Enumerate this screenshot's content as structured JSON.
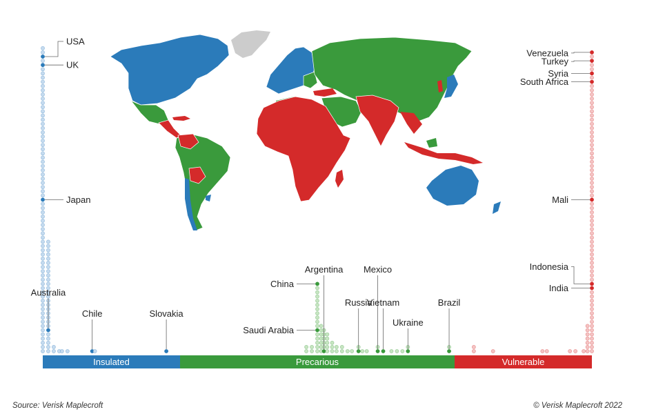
{
  "chart_data": {
    "type": "scatter",
    "title": "",
    "categories": [
      "Insulated",
      "Precarious",
      "Vulnerable"
    ],
    "colors": {
      "Insulated": "#2b7bba",
      "Precarious": "#3a9a3c",
      "Vulnerable": "#d42a2a",
      "insulated_dot": "#c6dbef",
      "precarious_dot": "#c7e5c2",
      "vulnerable_dot": "#f4c4c4",
      "unrated": "#cccccc"
    },
    "score_range": [
      0,
      10
    ],
    "category_thresholds": [
      2.5,
      7.5
    ],
    "columns": [
      {
        "score": 0.0,
        "count": 73
      },
      {
        "score": 0.1,
        "count": 27
      },
      {
        "score": 0.2,
        "count": 2
      },
      {
        "score": 0.3,
        "count": 1
      },
      {
        "score": 0.35,
        "count": 1
      },
      {
        "score": 0.45,
        "count": 1
      },
      {
        "score": 0.9,
        "count": 1
      },
      {
        "score": 0.95,
        "count": 1
      },
      {
        "score": 2.25,
        "count": 1
      },
      {
        "score": 4.8,
        "count": 2
      },
      {
        "score": 4.9,
        "count": 2
      },
      {
        "score": 5.0,
        "count": 17
      },
      {
        "score": 5.07,
        "count": 7
      },
      {
        "score": 5.12,
        "count": 6
      },
      {
        "score": 5.18,
        "count": 5
      },
      {
        "score": 5.27,
        "count": 3
      },
      {
        "score": 5.35,
        "count": 2
      },
      {
        "score": 5.45,
        "count": 2
      },
      {
        "score": 5.55,
        "count": 1
      },
      {
        "score": 5.63,
        "count": 1
      },
      {
        "score": 5.75,
        "count": 2
      },
      {
        "score": 5.82,
        "count": 1
      },
      {
        "score": 5.9,
        "count": 1
      },
      {
        "score": 6.1,
        "count": 2
      },
      {
        "score": 6.2,
        "count": 1
      },
      {
        "score": 6.35,
        "count": 1
      },
      {
        "score": 6.45,
        "count": 1
      },
      {
        "score": 6.55,
        "count": 1
      },
      {
        "score": 6.65,
        "count": 2
      },
      {
        "score": 7.4,
        "count": 2
      },
      {
        "score": 7.85,
        "count": 2
      },
      {
        "score": 8.2,
        "count": 1
      },
      {
        "score": 9.1,
        "count": 1
      },
      {
        "score": 9.18,
        "count": 1
      },
      {
        "score": 9.6,
        "count": 1
      },
      {
        "score": 9.7,
        "count": 1
      },
      {
        "score": 9.85,
        "count": 1
      },
      {
        "score": 9.92,
        "count": 7
      },
      {
        "score": 10.0,
        "count": 72
      }
    ],
    "labels": [
      {
        "name": "USA",
        "score": 0.0,
        "rank": 71,
        "side": "right"
      },
      {
        "name": "UK",
        "score": 0.0,
        "rank": 69,
        "side": "right"
      },
      {
        "name": "Japan",
        "score": 0.0,
        "rank": 37,
        "side": "right"
      },
      {
        "name": "Australia",
        "score": 0.1,
        "rank": 6,
        "side": "up"
      },
      {
        "name": "Chile",
        "score": 0.9,
        "rank": 1,
        "side": "up"
      },
      {
        "name": "Slovakia",
        "score": 2.25,
        "rank": 1,
        "side": "up"
      },
      {
        "name": "China",
        "score": 5.0,
        "rank": 17,
        "side": "left"
      },
      {
        "name": "Saudi Arabia",
        "score": 5.0,
        "rank": 6,
        "side": "left"
      },
      {
        "name": "Argentina",
        "score": 5.12,
        "rank": 1,
        "side": "up"
      },
      {
        "name": "Russia",
        "score": 5.75,
        "rank": 1,
        "side": "up"
      },
      {
        "name": "Mexico",
        "score": 6.1,
        "rank": 1,
        "side": "up"
      },
      {
        "name": "Vietnam",
        "score": 6.2,
        "rank": 1,
        "side": "up"
      },
      {
        "name": "Ukraine",
        "score": 6.65,
        "rank": 1,
        "side": "up"
      },
      {
        "name": "Brazil",
        "score": 7.4,
        "rank": 1,
        "side": "up"
      },
      {
        "name": "Venezuela",
        "score": 10.0,
        "rank": 72,
        "side": "left"
      },
      {
        "name": "Turkey",
        "score": 10.0,
        "rank": 70,
        "side": "left"
      },
      {
        "name": "Syria",
        "score": 10.0,
        "rank": 67,
        "side": "left"
      },
      {
        "name": "South Africa",
        "score": 10.0,
        "rank": 65,
        "side": "left"
      },
      {
        "name": "Mali",
        "score": 10.0,
        "rank": 37,
        "side": "left"
      },
      {
        "name": "Indonesia",
        "score": 10.0,
        "rank": 17,
        "side": "left"
      },
      {
        "name": "India",
        "score": 10.0,
        "rank": 16,
        "side": "left"
      }
    ]
  },
  "footer": {
    "source": "Source: Verisk Maplecroft",
    "copyright": "© Verisk Maplecroft 2022"
  }
}
